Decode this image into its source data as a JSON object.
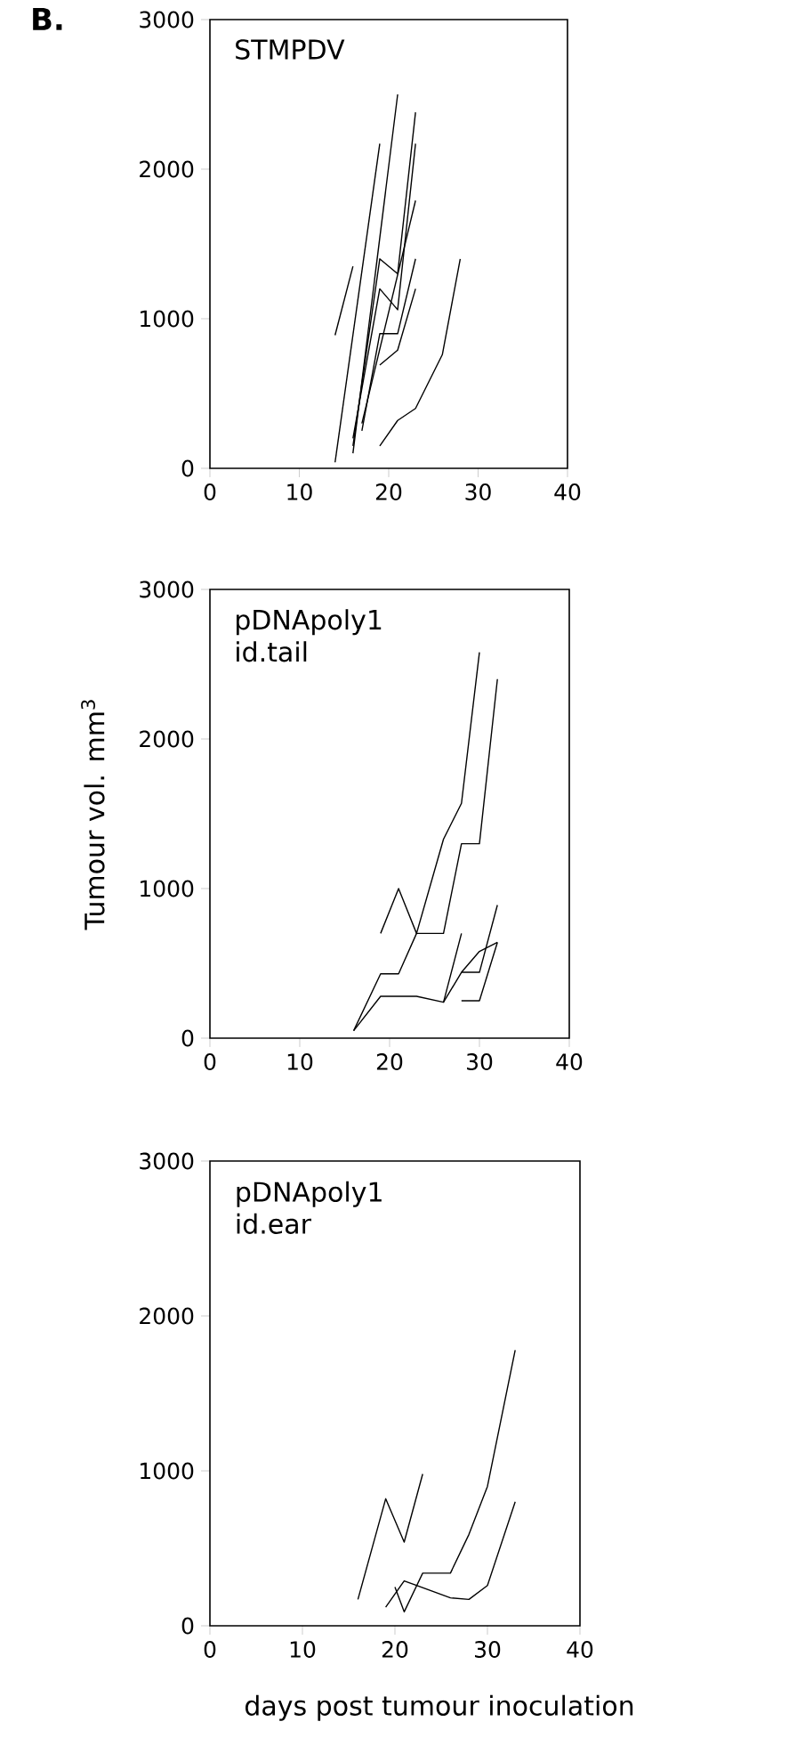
{
  "chart_data": [
    {
      "type": "line",
      "title": "STMPDV",
      "annotations": [
        "B."
      ],
      "xlim": [
        0,
        40
      ],
      "ylim": [
        0,
        3000
      ],
      "xticks": [
        0,
        10,
        20,
        30,
        40
      ],
      "yticks": [
        0,
        1000,
        2000,
        3000
      ],
      "series": [
        {
          "color": "#000000",
          "x": [
            14,
            16
          ],
          "values": [
            890,
            1350
          ]
        },
        {
          "color": "#000000",
          "x": [
            14,
            19
          ],
          "values": [
            40,
            2170
          ]
        },
        {
          "color": "#000000",
          "x": [
            16,
            21
          ],
          "values": [
            100,
            2500
          ]
        },
        {
          "color": "#000000",
          "x": [
            16,
            19,
            21,
            23
          ],
          "values": [
            150,
            1400,
            1300,
            2380
          ]
        },
        {
          "color": "#000000",
          "x": [
            16,
            19,
            21,
            23
          ],
          "values": [
            200,
            1200,
            1060,
            2170
          ]
        },
        {
          "color": "#000000",
          "x": [
            17,
            19,
            21,
            23
          ],
          "values": [
            250,
            900,
            900,
            1400
          ]
        },
        {
          "color": "#000000",
          "x": [
            17,
            23
          ],
          "values": [
            300,
            1790
          ]
        },
        {
          "color": "#000000",
          "x": [
            19,
            21,
            23
          ],
          "values": [
            690,
            790,
            1200
          ]
        },
        {
          "color": "#000000",
          "x": [
            19,
            21,
            23,
            26,
            28
          ],
          "values": [
            150,
            320,
            400,
            760,
            1400
          ]
        }
      ]
    },
    {
      "type": "line",
      "title": "pDNApoly1",
      "subtitle": "id.tail",
      "ylabel": "Tumour vol. mm$^{3}$",
      "xlim": [
        0,
        40
      ],
      "ylim": [
        0,
        3000
      ],
      "xticks": [
        0,
        10,
        20,
        30,
        40
      ],
      "yticks": [
        0,
        1000,
        2000,
        3000
      ],
      "series": [
        {
          "color": "#000000",
          "x": [
            16,
            19,
            21,
            23,
            26,
            28,
            30
          ],
          "values": [
            50,
            430,
            430,
            700,
            1330,
            1570,
            2580
          ]
        },
        {
          "color": "#000000",
          "x": [
            16,
            19,
            23,
            26,
            28
          ],
          "values": [
            50,
            280,
            280,
            240,
            700
          ]
        },
        {
          "color": "#000000",
          "x": [
            19,
            21,
            23,
            26,
            28,
            30,
            32
          ],
          "values": [
            700,
            1000,
            700,
            700,
            1300,
            1300,
            2400
          ]
        },
        {
          "color": "#000000",
          "x": [
            28,
            30,
            32
          ],
          "values": [
            440,
            440,
            890
          ]
        },
        {
          "color": "#000000",
          "x": [
            26,
            28,
            30,
            32
          ],
          "values": [
            240,
            440,
            580,
            640
          ]
        },
        {
          "color": "#000000",
          "x": [
            28,
            30,
            32
          ],
          "values": [
            250,
            250,
            640
          ]
        }
      ]
    },
    {
      "type": "line",
      "title": "pDNApoly1",
      "subtitle": "id.ear",
      "xlabel": "days post tumour inoculation",
      "xlim": [
        0,
        40
      ],
      "ylim": [
        0,
        3000
      ],
      "xticks": [
        0,
        10,
        20,
        30,
        40
      ],
      "yticks": [
        0,
        1000,
        2000,
        3000
      ],
      "series": [
        {
          "color": "#000000",
          "x": [
            16,
            19,
            21,
            23
          ],
          "values": [
            170,
            820,
            540,
            980
          ]
        },
        {
          "color": "#000000",
          "x": [
            19,
            21,
            26,
            28,
            30,
            33
          ],
          "values": [
            120,
            290,
            180,
            170,
            260,
            800
          ]
        },
        {
          "color": "#000000",
          "x": [
            20,
            21,
            23,
            26,
            28,
            30,
            33
          ],
          "values": [
            250,
            90,
            340,
            340,
            590,
            900,
            1780
          ]
        }
      ]
    }
  ]
}
